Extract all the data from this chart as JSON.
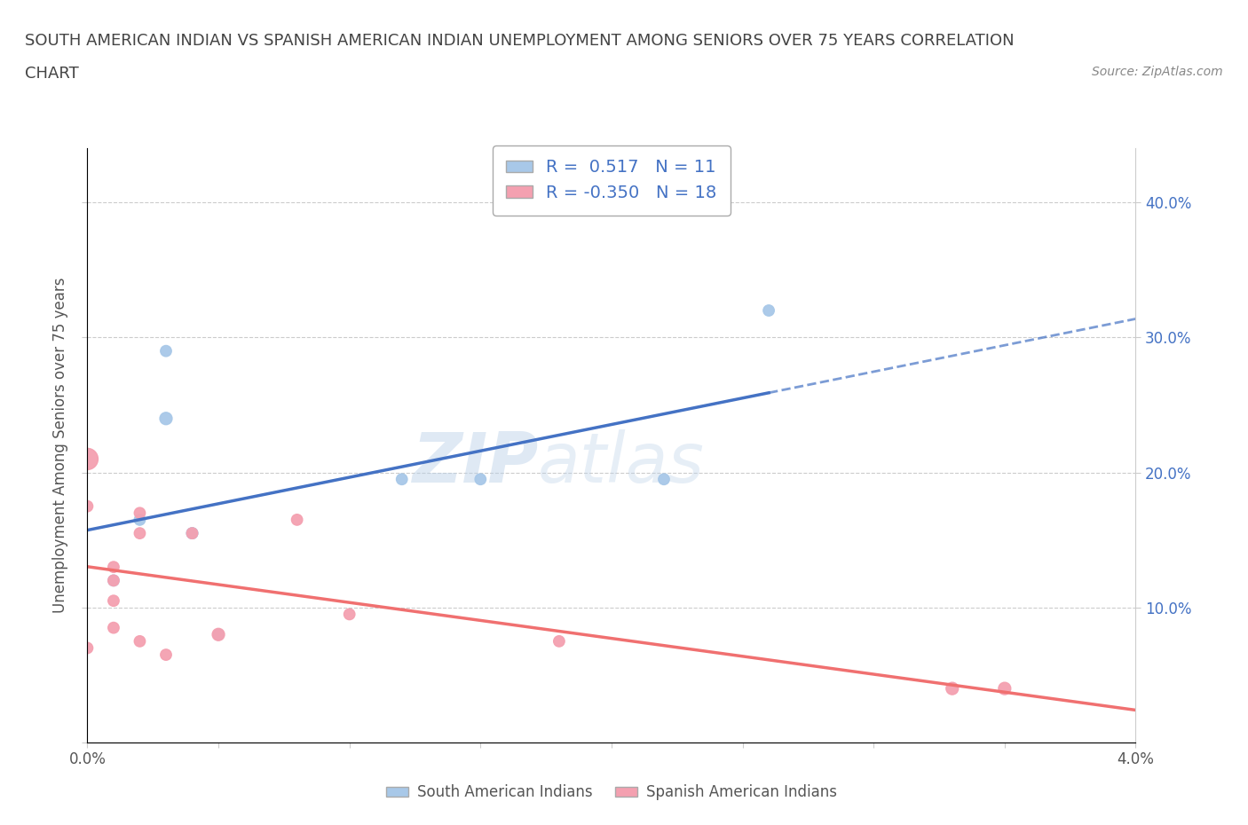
{
  "title_line1": "SOUTH AMERICAN INDIAN VS SPANISH AMERICAN INDIAN UNEMPLOYMENT AMONG SENIORS OVER 75 YEARS CORRELATION",
  "title_line2": "CHART",
  "source": "Source: ZipAtlas.com",
  "ylabel": "Unemployment Among Seniors over 75 years",
  "xlim": [
    0.0,
    0.04
  ],
  "ylim": [
    0.0,
    0.44
  ],
  "xticks": [
    0.0,
    0.005,
    0.01,
    0.015,
    0.02,
    0.025,
    0.03,
    0.035,
    0.04
  ],
  "xticklabels": [
    "0.0%",
    "",
    "",
    "",
    "",
    "",
    "",
    "",
    "4.0%"
  ],
  "yticks_left": [
    0.0,
    0.1,
    0.2,
    0.3,
    0.4
  ],
  "yticklabels_left": [
    "",
    "",
    "",
    "",
    ""
  ],
  "yticks_right": [
    0.1,
    0.2,
    0.3,
    0.4
  ],
  "yticklabels_right": [
    "10.0%",
    "20.0%",
    "30.0%",
    "40.0%"
  ],
  "blue_R": "0.517",
  "blue_N": "11",
  "pink_R": "-0.350",
  "pink_N": "18",
  "blue_color": "#a8c8e8",
  "pink_color": "#f4a0b0",
  "blue_line_color": "#4472c4",
  "pink_line_color": "#f07070",
  "blue_scatter": [
    [
      0.001,
      0.12
    ],
    [
      0.002,
      0.165
    ],
    [
      0.003,
      0.29
    ],
    [
      0.003,
      0.24
    ],
    [
      0.004,
      0.155
    ],
    [
      0.004,
      0.155
    ],
    [
      0.005,
      0.08
    ],
    [
      0.012,
      0.195
    ],
    [
      0.015,
      0.195
    ],
    [
      0.022,
      0.195
    ],
    [
      0.026,
      0.32
    ]
  ],
  "pink_scatter": [
    [
      0.0,
      0.21
    ],
    [
      0.0,
      0.175
    ],
    [
      0.0,
      0.07
    ],
    [
      0.001,
      0.13
    ],
    [
      0.001,
      0.105
    ],
    [
      0.001,
      0.12
    ],
    [
      0.001,
      0.085
    ],
    [
      0.002,
      0.155
    ],
    [
      0.002,
      0.17
    ],
    [
      0.002,
      0.075
    ],
    [
      0.003,
      0.065
    ],
    [
      0.004,
      0.155
    ],
    [
      0.005,
      0.08
    ],
    [
      0.008,
      0.165
    ],
    [
      0.01,
      0.095
    ],
    [
      0.018,
      0.075
    ],
    [
      0.033,
      0.04
    ],
    [
      0.035,
      0.04
    ]
  ],
  "blue_scatter_sizes": [
    80,
    80,
    80,
    100,
    80,
    80,
    80,
    80,
    80,
    80,
    80
  ],
  "pink_scatter_sizes": [
    300,
    80,
    80,
    80,
    80,
    80,
    80,
    80,
    80,
    80,
    80,
    80,
    100,
    80,
    80,
    80,
    100,
    100
  ],
  "watermark_zip": "ZIP",
  "watermark_atlas": "atlas",
  "background_color": "#ffffff",
  "grid_color": "#cccccc",
  "title_color": "#444444",
  "axis_label_color": "#555555",
  "right_axis_color": "#4472c4",
  "blue_line_solid_end": 0.026,
  "blue_line_end": 0.04
}
